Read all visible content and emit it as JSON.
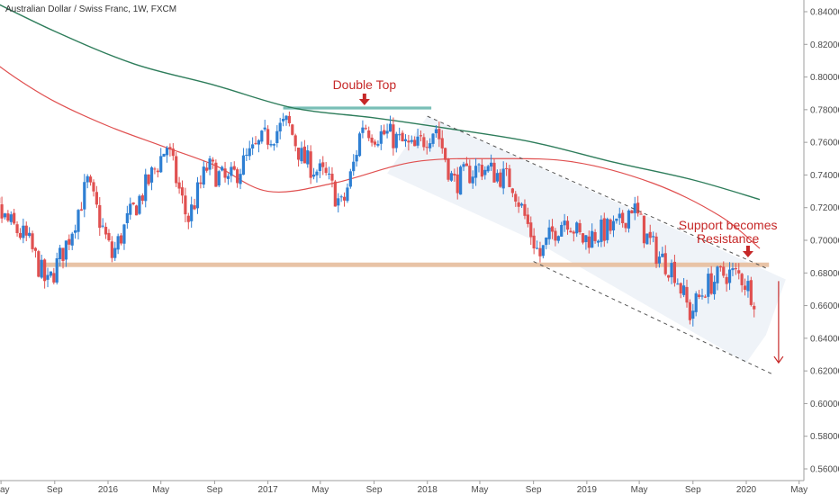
{
  "chart_data": {
    "type": "candlestick",
    "title": "Australian Dollar / Swiss Franc, 1W, FXCM",
    "ylim": [
      0.55,
      0.845
    ],
    "y_ticks": [
      "0.84000",
      "0.82000",
      "0.80000",
      "0.78000",
      "0.76000",
      "0.74000",
      "0.72000",
      "0.70000",
      "0.68000",
      "0.66000",
      "0.64000",
      "0.62000",
      "0.60000",
      "0.58000",
      "0.56000"
    ],
    "x_ticks": [
      "May",
      "Sep",
      "2016",
      "May",
      "Sep",
      "2017",
      "May",
      "Sep",
      "2018",
      "May",
      "Sep",
      "2019",
      "May",
      "Sep",
      "2020",
      "May"
    ],
    "x_tick_dates": [
      "2015-05",
      "2015-09",
      "2016-01",
      "2016-05",
      "2016-09",
      "2017-01",
      "2017-05",
      "2017-09",
      "2018-01",
      "2018-05",
      "2018-09",
      "2019-01",
      "2019-05",
      "2019-09",
      "2020-01",
      "2020-05"
    ],
    "grid": false,
    "colors": {
      "up": "#2e7fd3",
      "down": "#e05050",
      "ma_long": "#2e7d5b",
      "ma_short": "#e05050",
      "annotation": "#c62828"
    },
    "price_path": [
      [
        "2015-03-01",
        0.74
      ],
      [
        "2015-05-01",
        0.715
      ],
      [
        "2015-07-01",
        0.7
      ],
      [
        "2015-08-15",
        0.672
      ],
      [
        "2015-10-01",
        0.7
      ],
      [
        "2015-11-15",
        0.735
      ],
      [
        "2016-01-10",
        0.69
      ],
      [
        "2016-02-15",
        0.712
      ],
      [
        "2016-04-01",
        0.735
      ],
      [
        "2016-05-15",
        0.758
      ],
      [
        "2016-07-01",
        0.712
      ],
      [
        "2016-08-15",
        0.745
      ],
      [
        "2016-10-01",
        0.735
      ],
      [
        "2016-11-15",
        0.75
      ],
      [
        "2016-12-25",
        0.762
      ],
      [
        "2017-02-15",
        0.772
      ],
      [
        "2017-03-20",
        0.75
      ],
      [
        "2017-05-15",
        0.738
      ],
      [
        "2017-06-20",
        0.72
      ],
      [
        "2017-07-15",
        0.745
      ],
      [
        "2017-08-05",
        0.772
      ],
      [
        "2017-09-01",
        0.765
      ],
      [
        "2017-10-01",
        0.765
      ],
      [
        "2017-11-01",
        0.76
      ],
      [
        "2017-12-01",
        0.755
      ],
      [
        "2018-01-20",
        0.77
      ],
      [
        "2018-03-01",
        0.735
      ],
      [
        "2018-05-01",
        0.745
      ],
      [
        "2018-06-15",
        0.74
      ],
      [
        "2018-07-15",
        0.735
      ],
      [
        "2018-08-15",
        0.712
      ],
      [
        "2018-09-15",
        0.69
      ],
      [
        "2018-10-15",
        0.705
      ],
      [
        "2018-11-15",
        0.715
      ],
      [
        "2018-12-20",
        0.7
      ],
      [
        "2019-02-01",
        0.705
      ],
      [
        "2019-03-15",
        0.708
      ],
      [
        "2019-04-15",
        0.722
      ],
      [
        "2019-05-15",
        0.703
      ],
      [
        "2019-06-15",
        0.69
      ],
      [
        "2019-07-20",
        0.682
      ],
      [
        "2019-08-25",
        0.655
      ],
      [
        "2019-10-01",
        0.672
      ],
      [
        "2019-11-15",
        0.68
      ],
      [
        "2019-12-20",
        0.678
      ],
      [
        "2020-01-20",
        0.665
      ]
    ],
    "series": [
      {
        "points": [
          [
            "2015-03-01",
            0.818
          ],
          [
            "2015-06-01",
            0.8
          ],
          [
            "2015-09-01",
            0.785
          ],
          [
            "2016-01-01",
            0.77
          ],
          [
            "2016-05-01",
            0.758
          ],
          [
            "2016-09-01",
            0.746
          ],
          [
            "2017-01-01",
            0.73
          ],
          [
            "2017-06-01",
            0.735
          ],
          [
            "2017-12-01",
            0.748
          ],
          [
            "2018-06-01",
            0.75
          ],
          [
            "2018-12-01",
            0.748
          ],
          [
            "2019-06-01",
            0.735
          ],
          [
            "2019-11-01",
            0.715
          ],
          [
            "2020-02-01",
            0.695
          ]
        ]
      },
      {
        "points": [
          [
            "2015-03-01",
            0.852
          ],
          [
            "2015-09-01",
            0.828
          ],
          [
            "2016-03-01",
            0.808
          ],
          [
            "2016-09-01",
            0.795
          ],
          [
            "2017-03-01",
            0.781
          ],
          [
            "2017-09-01",
            0.775
          ],
          [
            "2018-03-01",
            0.768
          ],
          [
            "2018-09-01",
            0.76
          ],
          [
            "2019-03-01",
            0.748
          ],
          [
            "2019-09-01",
            0.737
          ],
          [
            "2020-02-01",
            0.725
          ]
        ]
      }
    ],
    "levels": {
      "double_top": 0.781,
      "support_resistance": 0.685
    },
    "channel": {
      "upper": [
        [
          "2018-01-01",
          0.776
        ],
        [
          "2020-02-15",
          0.683
        ]
      ],
      "lower": [
        [
          "2018-09-01",
          0.687
        ],
        [
          "2020-03-01",
          0.618
        ]
      ]
    },
    "annotations": {
      "double_top": "Double Top",
      "support_line1": "Support becomes",
      "support_line2": "Resistance"
    }
  }
}
